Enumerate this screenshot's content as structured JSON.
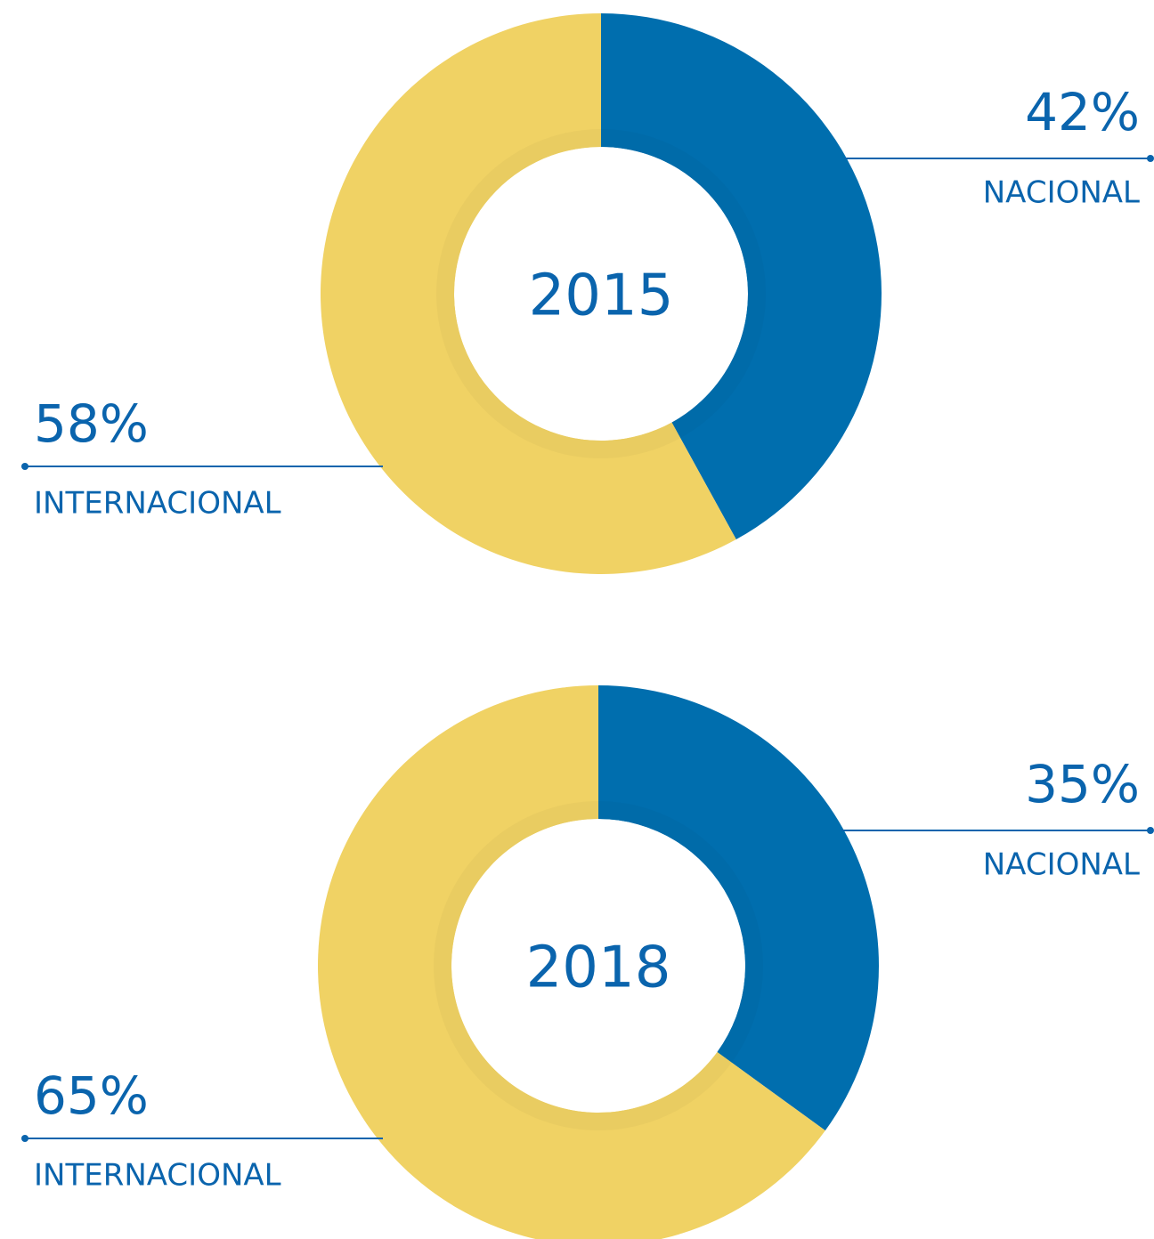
{
  "chart_data": [
    {
      "type": "donut",
      "title": "2015",
      "categories": [
        "NACIONAL",
        "INTERNACIONAL"
      ],
      "values": [
        42,
        58
      ],
      "value_labels": [
        "42%",
        "58%"
      ],
      "colors": [
        "#006eae",
        "#f0d264"
      ]
    },
    {
      "type": "donut",
      "title": "2018",
      "categories": [
        "NACIONAL",
        "INTERNACIONAL"
      ],
      "values": [
        35,
        65
      ],
      "value_labels": [
        "35%",
        "65%"
      ],
      "colors": [
        "#006eae",
        "#f0d264"
      ]
    }
  ]
}
